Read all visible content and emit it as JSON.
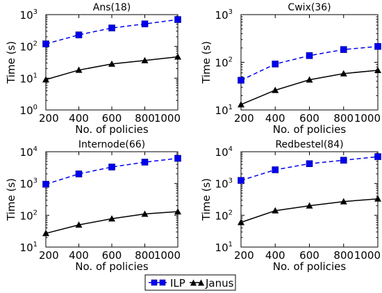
{
  "chart_data": [
    {
      "type": "line",
      "title": "Ans(18)",
      "xlabel": "No. of policies",
      "ylabel": "Time (s)",
      "x": [
        200,
        400,
        600,
        800,
        1000
      ],
      "xlim": [
        200,
        1000
      ],
      "ylim": [
        1,
        1000
      ],
      "yscale": "log",
      "grid": false,
      "series": [
        {
          "name": "ILP",
          "values": [
            120,
            230,
            380,
            510,
            700
          ],
          "color": "#0000ee",
          "style": "dashed",
          "marker": "square"
        },
        {
          "name": "Janus",
          "values": [
            9,
            18,
            28,
            36,
            47
          ],
          "color": "#000000",
          "style": "solid",
          "marker": "triangle"
        }
      ]
    },
    {
      "type": "line",
      "title": "Cwix(36)",
      "xlabel": "No. of policies",
      "ylabel": "Time (s)",
      "x": [
        200,
        400,
        600,
        800,
        1000
      ],
      "xlim": [
        200,
        1000
      ],
      "ylim": [
        10,
        1000
      ],
      "yscale": "log",
      "grid": false,
      "series": [
        {
          "name": "ILP",
          "values": [
            42,
            92,
            138,
            185,
            215
          ],
          "color": "#0000ee",
          "style": "dashed",
          "marker": "square"
        },
        {
          "name": "Janus",
          "values": [
            13,
            26,
            43,
            58,
            68
          ],
          "color": "#000000",
          "style": "solid",
          "marker": "triangle"
        }
      ]
    },
    {
      "type": "line",
      "title": "Internode(66)",
      "xlabel": "No. of policies",
      "ylabel": "Time (s)",
      "x": [
        200,
        400,
        600,
        800,
        1000
      ],
      "xlim": [
        200,
        1000
      ],
      "ylim": [
        10,
        10000
      ],
      "yscale": "log",
      "grid": false,
      "series": [
        {
          "name": "ILP",
          "values": [
            950,
            2000,
            3300,
            4700,
            6200
          ],
          "color": "#0000ee",
          "style": "dashed",
          "marker": "square"
        },
        {
          "name": "Janus",
          "values": [
            27,
            50,
            78,
            110,
            130
          ],
          "color": "#000000",
          "style": "solid",
          "marker": "triangle"
        }
      ]
    },
    {
      "type": "line",
      "title": "Redbestel(84)",
      "xlabel": "No. of policies",
      "ylabel": "Time (s)",
      "x": [
        200,
        400,
        600,
        800,
        1000
      ],
      "xlim": [
        200,
        1000
      ],
      "ylim": [
        10,
        10000
      ],
      "yscale": "log",
      "grid": false,
      "series": [
        {
          "name": "ILP",
          "values": [
            1250,
            2700,
            4200,
            5400,
            7000
          ],
          "color": "#0000ee",
          "style": "dashed",
          "marker": "square"
        },
        {
          "name": "Janus",
          "values": [
            60,
            140,
            200,
            270,
            330
          ],
          "color": "#000000",
          "style": "solid",
          "marker": "triangle"
        }
      ]
    }
  ],
  "legend": {
    "placement": "bottom-center",
    "entries": [
      {
        "label": "ILP",
        "color": "#0000ee",
        "marker": "square"
      },
      {
        "label": "Janus",
        "color": "#000000",
        "marker": "triangle"
      }
    ]
  },
  "colors": {
    "ilp": "#0000ee",
    "janus": "#000000"
  }
}
